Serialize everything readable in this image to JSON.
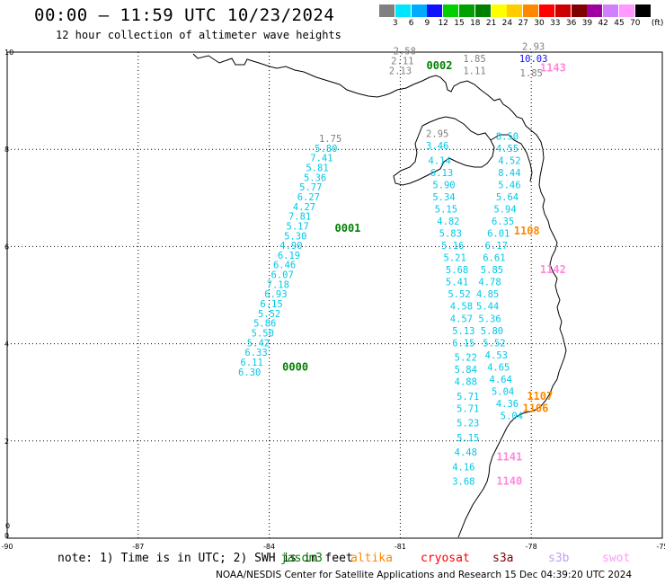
{
  "title": "00:00 – 11:59 UTC 10/23/2024",
  "subtitle": "12 hour collection of altimeter wave heights",
  "colorbar": {
    "unit": "(ft)",
    "labels": [
      "3",
      "6",
      "9",
      "12",
      "15",
      "18",
      "21",
      "24",
      "27",
      "30",
      "33",
      "36",
      "39",
      "42",
      "45",
      "70"
    ],
    "colors": [
      "#808080",
      "#00e5ff",
      "#00aaff",
      "#1010ff",
      "#00d000",
      "#00a000",
      "#008000",
      "#ffff00",
      "#ffcc00",
      "#ff8800",
      "#ff0000",
      "#cc0000",
      "#800000",
      "#a000a0",
      "#d080ff",
      "#ff99ff",
      "#000000"
    ]
  },
  "map": {
    "lon_ticks": [
      "-90",
      "-87",
      "-84",
      "-81",
      "-78",
      "-75"
    ],
    "lat_ticks": [
      "10",
      "8",
      "6",
      "4",
      "2",
      "0"
    ],
    "extra_tick": "0"
  },
  "passes": [
    {
      "label": "0000",
      "color": "#008000",
      "lon": -83.7,
      "lat": 3.45
    },
    {
      "label": "0001",
      "color": "#008000",
      "lon": -82.5,
      "lat": 6.3
    },
    {
      "label": "0002",
      "color": "#008000",
      "lon": -80.4,
      "lat": 9.65
    },
    {
      "label": "1108",
      "color": "#ff8800",
      "lon": -78.4,
      "lat": 6.25
    },
    {
      "label": "1107",
      "color": "#ff8800",
      "lon": -78.1,
      "lat": 2.85
    },
    {
      "label": "1106",
      "color": "#ff8800",
      "lon": -78.2,
      "lat": 2.6
    },
    {
      "label": "1142",
      "color": "#ff88dd",
      "lon": -77.8,
      "lat": 5.45
    },
    {
      "label": "1141",
      "color": "#ff88dd",
      "lon": -78.8,
      "lat": 1.6
    },
    {
      "label": "1140",
      "color": "#ff88dd",
      "lon": -78.8,
      "lat": 1.1
    },
    {
      "label": "1143",
      "color": "#ff88dd",
      "lon": -77.8,
      "lat": 9.6
    }
  ],
  "tracks": [
    {
      "name": "track-0000-jason",
      "color": "#00c8e8",
      "points": [
        {
          "v": "1.75",
          "lon": -82.6,
          "lat": 8.15,
          "c": "#808080"
        },
        {
          "v": "5.80",
          "lon": -82.7,
          "lat": 7.95
        },
        {
          "v": "7.41",
          "lon": -82.8,
          "lat": 7.75
        },
        {
          "v": "5.81",
          "lon": -82.9,
          "lat": 7.55
        },
        {
          "v": "5.36",
          "lon": -82.95,
          "lat": 7.35
        },
        {
          "v": "5.77",
          "lon": -83.05,
          "lat": 7.15
        },
        {
          "v": "6.27",
          "lon": -83.1,
          "lat": 6.95
        },
        {
          "v": "4.27",
          "lon": -83.2,
          "lat": 6.75
        },
        {
          "v": "7.81",
          "lon": -83.3,
          "lat": 6.55
        },
        {
          "v": "5.17",
          "lon": -83.35,
          "lat": 6.35
        },
        {
          "v": "5.30",
          "lon": -83.4,
          "lat": 6.15
        },
        {
          "v": "4.90",
          "lon": -83.5,
          "lat": 5.95
        },
        {
          "v": "6.19",
          "lon": -83.55,
          "lat": 5.75
        },
        {
          "v": "6.46",
          "lon": -83.65,
          "lat": 5.55
        },
        {
          "v": "6.07",
          "lon": -83.7,
          "lat": 5.35
        },
        {
          "v": "7.18",
          "lon": -83.8,
          "lat": 5.15
        },
        {
          "v": "6.93",
          "lon": -83.85,
          "lat": 4.95
        },
        {
          "v": "6.15",
          "lon": -83.95,
          "lat": 4.75
        },
        {
          "v": "5.52",
          "lon": -84.0,
          "lat": 4.55
        },
        {
          "v": "5.86",
          "lon": -84.1,
          "lat": 4.35
        },
        {
          "v": "5.50",
          "lon": -84.15,
          "lat": 4.15
        },
        {
          "v": "5.42",
          "lon": -84.25,
          "lat": 3.95
        },
        {
          "v": "6.33",
          "lon": -84.3,
          "lat": 3.75
        },
        {
          "v": "6.11",
          "lon": -84.4,
          "lat": 3.55
        },
        {
          "v": "6.30",
          "lon": -84.45,
          "lat": 3.35
        }
      ]
    },
    {
      "name": "track-1108-saral",
      "color": "#00c8e8",
      "points": [
        {
          "v": "2.95",
          "lon": -80.15,
          "lat": 8.25,
          "c": "#808080"
        },
        {
          "v": "3.46",
          "lon": -80.15,
          "lat": 8.0
        },
        {
          "v": "4.14",
          "lon": -80.1,
          "lat": 7.7
        },
        {
          "v": "6.13",
          "lon": -80.05,
          "lat": 7.45
        },
        {
          "v": "5.90",
          "lon": -80.0,
          "lat": 7.2
        },
        {
          "v": "5.34",
          "lon": -80.0,
          "lat": 6.95
        },
        {
          "v": "5.15",
          "lon": -79.95,
          "lat": 6.7
        },
        {
          "v": "4.82",
          "lon": -79.9,
          "lat": 6.45
        },
        {
          "v": "5.83",
          "lon": -79.85,
          "lat": 6.2
        },
        {
          "v": "5.16",
          "lon": -79.8,
          "lat": 5.95
        },
        {
          "v": "5.21",
          "lon": -79.75,
          "lat": 5.7
        },
        {
          "v": "5.68",
          "lon": -79.7,
          "lat": 5.45
        },
        {
          "v": "5.41",
          "lon": -79.7,
          "lat": 5.2
        },
        {
          "v": "5.52",
          "lon": -79.65,
          "lat": 4.95
        },
        {
          "v": "4.58",
          "lon": -79.6,
          "lat": 4.7
        },
        {
          "v": "4.57",
          "lon": -79.6,
          "lat": 4.45
        },
        {
          "v": "5.13",
          "lon": -79.55,
          "lat": 4.2
        },
        {
          "v": "6.15",
          "lon": -79.55,
          "lat": 3.95
        },
        {
          "v": "5.22",
          "lon": -79.5,
          "lat": 3.65
        },
        {
          "v": "5.84",
          "lon": -79.5,
          "lat": 3.4
        },
        {
          "v": "4.88",
          "lon": -79.5,
          "lat": 3.15
        },
        {
          "v": "5.71",
          "lon": -79.45,
          "lat": 2.85
        },
        {
          "v": "5.71",
          "lon": -79.45,
          "lat": 2.6
        },
        {
          "v": "5.23",
          "lon": -79.45,
          "lat": 2.3
        },
        {
          "v": "5.15",
          "lon": -79.45,
          "lat": 2.0
        },
        {
          "v": "4.48",
          "lon": -79.5,
          "lat": 1.7
        },
        {
          "v": "4.16",
          "lon": -79.55,
          "lat": 1.4
        },
        {
          "v": "3.68",
          "lon": -79.55,
          "lat": 1.1
        }
      ]
    },
    {
      "name": "track-1142-cryosat",
      "color": "#00c8e8",
      "points": [
        {
          "v": "8.50",
          "lon": -78.55,
          "lat": 8.2
        },
        {
          "v": "4.55",
          "lon": -78.55,
          "lat": 7.95
        },
        {
          "v": "4.52",
          "lon": -78.5,
          "lat": 7.7
        },
        {
          "v": "8.44",
          "lon": -78.5,
          "lat": 7.45
        },
        {
          "v": "5.46",
          "lon": -78.5,
          "lat": 7.2
        },
        {
          "v": "5.64",
          "lon": -78.55,
          "lat": 6.95
        },
        {
          "v": "5.94",
          "lon": -78.6,
          "lat": 6.7
        },
        {
          "v": "6.35",
          "lon": -78.65,
          "lat": 6.45
        },
        {
          "v": "6.01",
          "lon": -78.75,
          "lat": 6.2
        },
        {
          "v": "6.17",
          "lon": -78.8,
          "lat": 5.95
        },
        {
          "v": "6.61",
          "lon": -78.85,
          "lat": 5.7
        },
        {
          "v": "5.85",
          "lon": -78.9,
          "lat": 5.45
        },
        {
          "v": "4.78",
          "lon": -78.95,
          "lat": 5.2
        },
        {
          "v": "4.85",
          "lon": -79.0,
          "lat": 4.95
        },
        {
          "v": "5.44",
          "lon": -79.0,
          "lat": 4.7
        },
        {
          "v": "5.36",
          "lon": -78.95,
          "lat": 4.45
        },
        {
          "v": "5.80",
          "lon": -78.9,
          "lat": 4.2
        },
        {
          "v": "5.52",
          "lon": -78.85,
          "lat": 3.95
        },
        {
          "v": "4.53",
          "lon": -78.8,
          "lat": 3.7
        },
        {
          "v": "4.65",
          "lon": -78.75,
          "lat": 3.45
        },
        {
          "v": "4.64",
          "lon": -78.7,
          "lat": 3.2
        },
        {
          "v": "5.04",
          "lon": -78.65,
          "lat": 2.95
        },
        {
          "v": "4.36",
          "lon": -78.55,
          "lat": 2.7
        },
        {
          "v": "5.04",
          "lon": -78.45,
          "lat": 2.45
        }
      ]
    },
    {
      "name": "track-north",
      "color": "#808080",
      "points": [
        {
          "v": "2.58",
          "lon": -80.9,
          "lat": 9.95
        },
        {
          "v": "2.11",
          "lon": -80.95,
          "lat": 9.75
        },
        {
          "v": "2.13",
          "lon": -81.0,
          "lat": 9.55
        },
        {
          "v": "1.85",
          "lon": -79.3,
          "lat": 9.8
        },
        {
          "v": "1.11",
          "lon": -79.3,
          "lat": 9.55
        },
        {
          "v": "2.93",
          "lon": -77.95,
          "lat": 10.05
        },
        {
          "v": "10.03",
          "lon": -77.95,
          "lat": 9.8,
          "c": "#1010ff"
        },
        {
          "v": "1.85",
          "lon": -78.0,
          "lat": 9.5
        }
      ]
    }
  ],
  "note": {
    "text": "note:  1) Time is in UTC; 2) SWH is in feet",
    "sats": [
      {
        "name": "jason3",
        "color": "#008000"
      },
      {
        "name": "altika",
        "color": "#ff8800"
      },
      {
        "name": "cryosat",
        "color": "#ff0000"
      },
      {
        "name": "s3a",
        "color": "#800000"
      },
      {
        "name": "s3b",
        "color": "#c0a0f0"
      },
      {
        "name": "swot",
        "color": "#ff99ff"
      }
    ]
  },
  "credit": "NOAA/NESDIS Center for Satellite Applications and Research    15 Dec 04:39:20 UTC 2024"
}
